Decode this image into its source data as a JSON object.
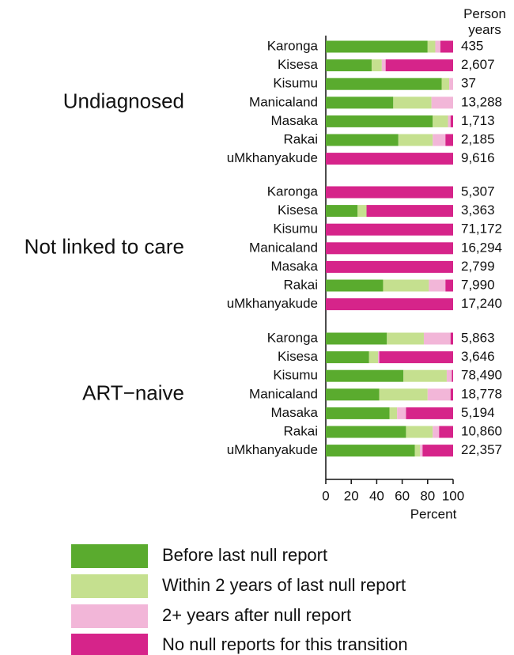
{
  "chart_data": {
    "type": "stacked-bar-horizontal",
    "person_years_title": "Person years",
    "xlabel": "Percent",
    "xlim": [
      0,
      100
    ],
    "xticks": [
      0,
      20,
      40,
      60,
      80,
      100
    ],
    "groups": [
      {
        "name": "Undiagnosed",
        "categories": [
          "Karonga",
          "Kisesa",
          "Kisumu",
          "Manicaland",
          "Masaka",
          "Rakai",
          "uMkhanyakude"
        ],
        "person_years": [
          "435",
          "2,607",
          "37",
          "13,288",
          "1,713",
          "2,185",
          "9,616"
        ]
      },
      {
        "name": "Not linked to care",
        "categories": [
          "Karonga",
          "Kisesa",
          "Kisumu",
          "Manicaland",
          "Masaka",
          "Rakai",
          "uMkhanyakude"
        ],
        "person_years": [
          "5,307",
          "3,363",
          "71,172",
          "16,294",
          "2,799",
          "7,990",
          "17,240"
        ]
      },
      {
        "name": "ART−naive",
        "categories": [
          "Karonga",
          "Kisesa",
          "Kisumu",
          "Manicaland",
          "Masaka",
          "Rakai",
          "uMkhanyakude"
        ],
        "person_years": [
          "5,863",
          "3,646",
          "78,490",
          "18,778",
          "5,194",
          "10,860",
          "22,357"
        ]
      }
    ],
    "series": [
      {
        "name": "Before last null report",
        "color": "#5aab2e",
        "values": [
          [
            80,
            36,
            91,
            53,
            84,
            57,
            0
          ],
          [
            0,
            25,
            0,
            0,
            0,
            45,
            0
          ],
          [
            48,
            34,
            61,
            42,
            50,
            63,
            70
          ]
        ]
      },
      {
        "name": "Within 2 years of last null report",
        "color": "#c5e08f",
        "values": [
          [
            6,
            8,
            6,
            30,
            12,
            27,
            0
          ],
          [
            0,
            7,
            0,
            0,
            0,
            36,
            0
          ],
          [
            29,
            7,
            34,
            38,
            6,
            21,
            4
          ]
        ]
      },
      {
        "name": "2+ years after null report",
        "color": "#f2b6d8",
        "values": [
          [
            4,
            3,
            3,
            17,
            2,
            10,
            0
          ],
          [
            0,
            0,
            0,
            0,
            0,
            13,
            0
          ],
          [
            21,
            1,
            4,
            18,
            7,
            5,
            2
          ]
        ]
      },
      {
        "name": "No null reports for this transition",
        "color": "#d6248a",
        "values": [
          [
            10,
            53,
            0,
            0,
            2,
            6,
            100
          ],
          [
            100,
            68,
            100,
            100,
            100,
            6,
            100
          ],
          [
            2,
            58,
            1,
            2,
            37,
            11,
            24
          ]
        ]
      }
    ]
  }
}
